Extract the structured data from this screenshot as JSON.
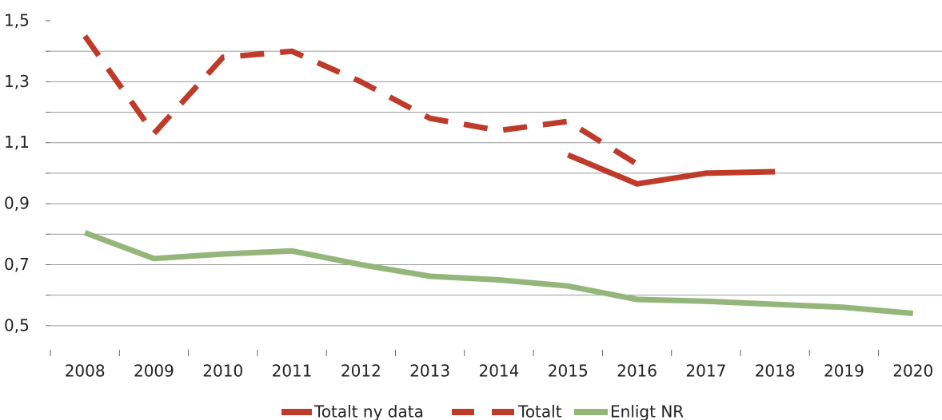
{
  "chart_data": {
    "type": "line",
    "categories": [
      "2008",
      "2009",
      "2010",
      "2011",
      "2012",
      "2013",
      "2014",
      "2015",
      "2016",
      "2017",
      "2018",
      "2019",
      "2020"
    ],
    "series": [
      {
        "name": "Totalt ny data",
        "color": "#be3b2a",
        "dashed": false,
        "values": [
          null,
          null,
          null,
          null,
          null,
          null,
          null,
          1.06,
          0.965,
          1.0,
          1.005,
          null,
          null
        ]
      },
      {
        "name": "Totalt",
        "color": "#be3b2a",
        "dashed": true,
        "values": [
          1.45,
          1.13,
          1.38,
          1.4,
          1.3,
          1.18,
          1.14,
          1.17,
          1.03,
          null,
          null,
          null,
          null
        ]
      },
      {
        "name": "Enligt NR",
        "color": "#94b67a",
        "dashed": false,
        "values": [
          0.805,
          0.72,
          0.735,
          0.745,
          0.7,
          0.662,
          0.65,
          0.63,
          0.586,
          0.58,
          0.57,
          0.56,
          0.54
        ]
      }
    ],
    "ylim": [
      0.4,
      1.5
    ],
    "yticks": [
      {
        "value": 0.5,
        "label": "0,5"
      },
      {
        "value": 0.7,
        "label": "0,7"
      },
      {
        "value": 0.9,
        "label": "0,9"
      },
      {
        "value": 1.1,
        "label": "1,1"
      },
      {
        "value": 1.3,
        "label": "1,3"
      },
      {
        "value": 1.5,
        "label": "1,5"
      }
    ],
    "minor_yticks": [
      0.6,
      0.8,
      1.0,
      1.2,
      1.4
    ],
    "grid": true,
    "legend": "bottom"
  }
}
